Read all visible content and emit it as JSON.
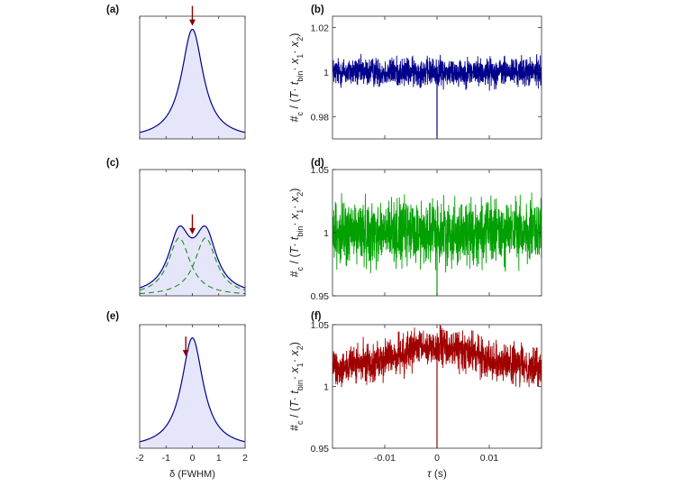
{
  "chart_data": [
    {
      "panel": "(a)",
      "type": "line",
      "curve": "single-lorentzian",
      "x": [
        -2,
        -1.5,
        -1,
        -0.75,
        -0.5,
        -0.25,
        0,
        0.25,
        0.5,
        0.75,
        1,
        1.5,
        2
      ],
      "y": [
        0.06,
        0.1,
        0.2,
        0.31,
        0.5,
        0.8,
        1.0,
        0.8,
        0.5,
        0.31,
        0.2,
        0.1,
        0.06
      ],
      "xlim": [
        -2,
        2
      ],
      "ylim": [
        0,
        1.12
      ],
      "arrow_x": 0,
      "colors": {
        "line": "#00008B",
        "fill": "#e6e6fa",
        "arrow": "#8B0000"
      }
    },
    {
      "panel": "(b)",
      "type": "line",
      "xlim": [
        -0.02,
        0.02
      ],
      "ylim": [
        0.97,
        1.025
      ],
      "yticks": [
        0.98,
        1,
        1.02
      ],
      "yticklabels": [
        "0.98",
        "1",
        "1.02"
      ],
      "xticks": [
        -0.01,
        0,
        0.01
      ],
      "ylabel_text": "#c / (T· tbin· x1· x2)",
      "mean": 1.0,
      "noise_amplitude": 0.005,
      "dip_at": 0,
      "dip_value": 0.97,
      "color": "#00008B"
    },
    {
      "panel": "(c)",
      "type": "line",
      "curve": "double-lorentzian",
      "peak_centers": [
        -0.5,
        0.5
      ],
      "xlim": [
        -2,
        2
      ],
      "ylim": [
        0,
        1.2
      ],
      "arrow_x": 0,
      "colors": {
        "line": "#00008B",
        "fill": "#e6e6fa",
        "components": "#228B22",
        "arrow": "#8B0000"
      }
    },
    {
      "panel": "(d)",
      "type": "line",
      "xlim": [
        -0.02,
        0.02
      ],
      "ylim": [
        0.95,
        1.05
      ],
      "yticks": [
        0.95,
        1,
        1.05
      ],
      "yticklabels": [
        "0.95",
        "1",
        "1.05"
      ],
      "xticks": [
        -0.01,
        0,
        0.01
      ],
      "ylabel_text": "#c / (T· tbin· x1· x2)",
      "mean": 1.0,
      "noise_amplitude": 0.02,
      "dip_at": 0,
      "dip_value": 0.95,
      "color": "#00A000"
    },
    {
      "panel": "(e)",
      "type": "line",
      "curve": "single-lorentzian",
      "x": [
        -2,
        -1.5,
        -1,
        -0.75,
        -0.5,
        -0.25,
        0,
        0.25,
        0.5,
        0.75,
        1,
        1.5,
        2
      ],
      "y": [
        0.06,
        0.1,
        0.2,
        0.31,
        0.5,
        0.8,
        1.0,
        0.8,
        0.5,
        0.31,
        0.2,
        0.1,
        0.06
      ],
      "xlim": [
        -2,
        2
      ],
      "ylim": [
        0,
        1.12
      ],
      "xticks": [
        -2,
        -1,
        0,
        1,
        2
      ],
      "xticklabels": [
        "-2",
        "-1",
        "0",
        "1",
        "2"
      ],
      "xlabel": "δ (FWHM)",
      "arrow_x": -0.25,
      "colors": {
        "line": "#00008B",
        "fill": "#e6e6fa",
        "arrow": "#8B0000"
      }
    },
    {
      "panel": "(f)",
      "type": "line",
      "xlim": [
        -0.02,
        0.02
      ],
      "ylim": [
        0.95,
        1.05
      ],
      "yticks": [
        0.95,
        1,
        1.05
      ],
      "yticklabels": [
        "0.95",
        "1",
        "1.05"
      ],
      "xticks": [
        -0.01,
        0,
        0.01
      ],
      "xticklabels": [
        "-0.01",
        "0",
        "0.01"
      ],
      "xlabel": "τ (s)",
      "ylabel_text": "#c / (T· tbin· x1· x2)",
      "mean_edges": 1.015,
      "mean_center": 1.032,
      "noise_amplitude": 0.012,
      "dip_at": 0,
      "dip_value": 0.95,
      "color": "#A00000"
    }
  ]
}
